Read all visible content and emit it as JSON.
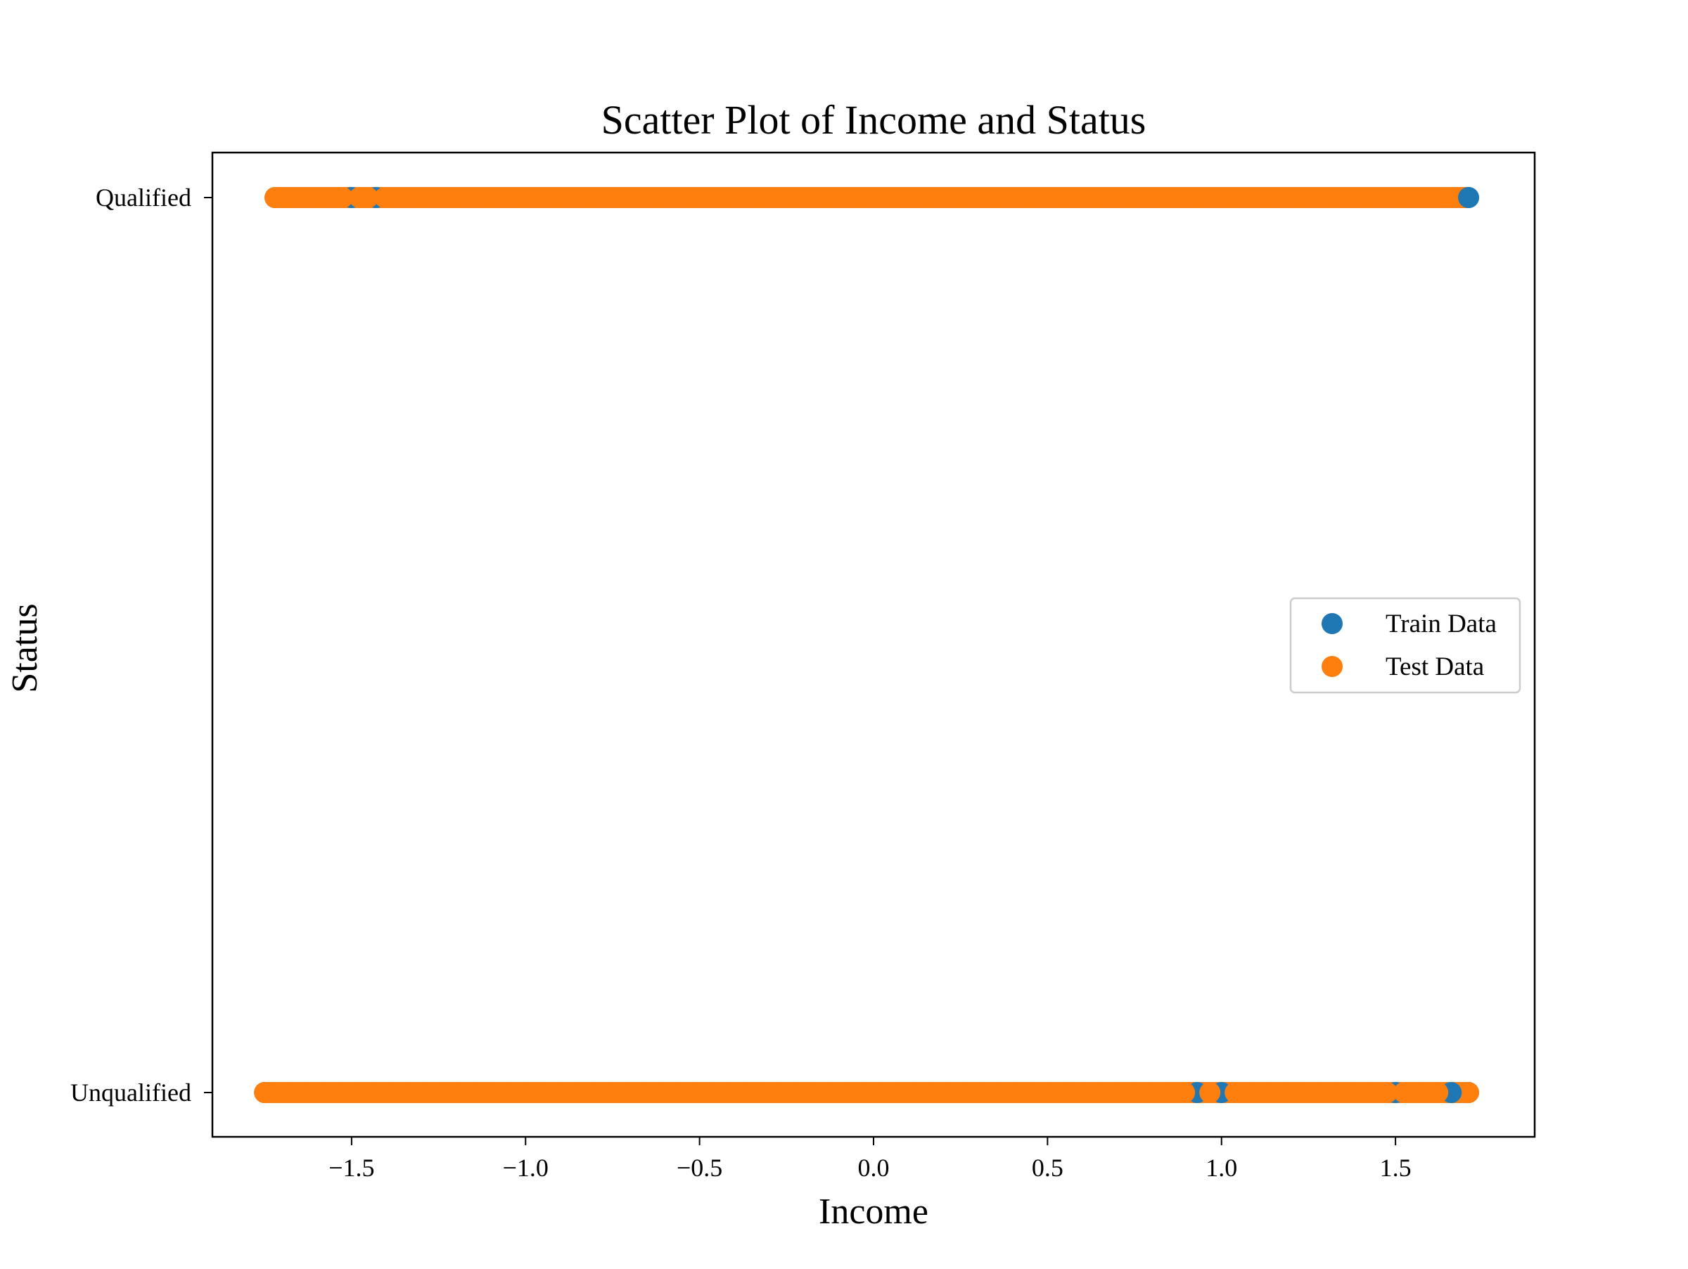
{
  "chart_data": {
    "type": "scatter",
    "title": "Scatter Plot of Income and Status",
    "xlabel": "Income",
    "ylabel": "Status",
    "xlim": [
      -1.9,
      1.9
    ],
    "x_ticks": [
      -1.5,
      -1.0,
      -0.5,
      0.0,
      0.5,
      1.0,
      1.5
    ],
    "x_tick_labels": [
      "−1.5",
      "−1.0",
      "−0.5",
      "0.0",
      "0.5",
      "1.0",
      "1.5"
    ],
    "y_categories": [
      "Unqualified",
      "Qualified"
    ],
    "grid": false,
    "legend_position": "center-right",
    "series": [
      {
        "name": "Train Data",
        "color": "#1f77b4",
        "segments": [
          {
            "y": "Qualified",
            "x_min": -1.72,
            "x_max": 1.71
          },
          {
            "y": "Unqualified",
            "x_min": -1.75,
            "x_max": 1.71
          }
        ],
        "visible_points": [
          {
            "x": -1.5,
            "y": "Qualified"
          },
          {
            "x": -1.43,
            "y": "Qualified"
          },
          {
            "x": 1.71,
            "y": "Qualified"
          },
          {
            "x": 0.93,
            "y": "Unqualified"
          },
          {
            "x": 1.0,
            "y": "Unqualified"
          },
          {
            "x": 1.5,
            "y": "Unqualified"
          },
          {
            "x": 1.66,
            "y": "Unqualified"
          }
        ]
      },
      {
        "name": "Test Data",
        "color": "#ff7f0e",
        "segments": [
          {
            "y": "Qualified",
            "x_min": -1.72,
            "x_max": 1.7
          },
          {
            "y": "Unqualified",
            "x_min": -1.75,
            "x_max": 1.71
          }
        ]
      }
    ]
  }
}
